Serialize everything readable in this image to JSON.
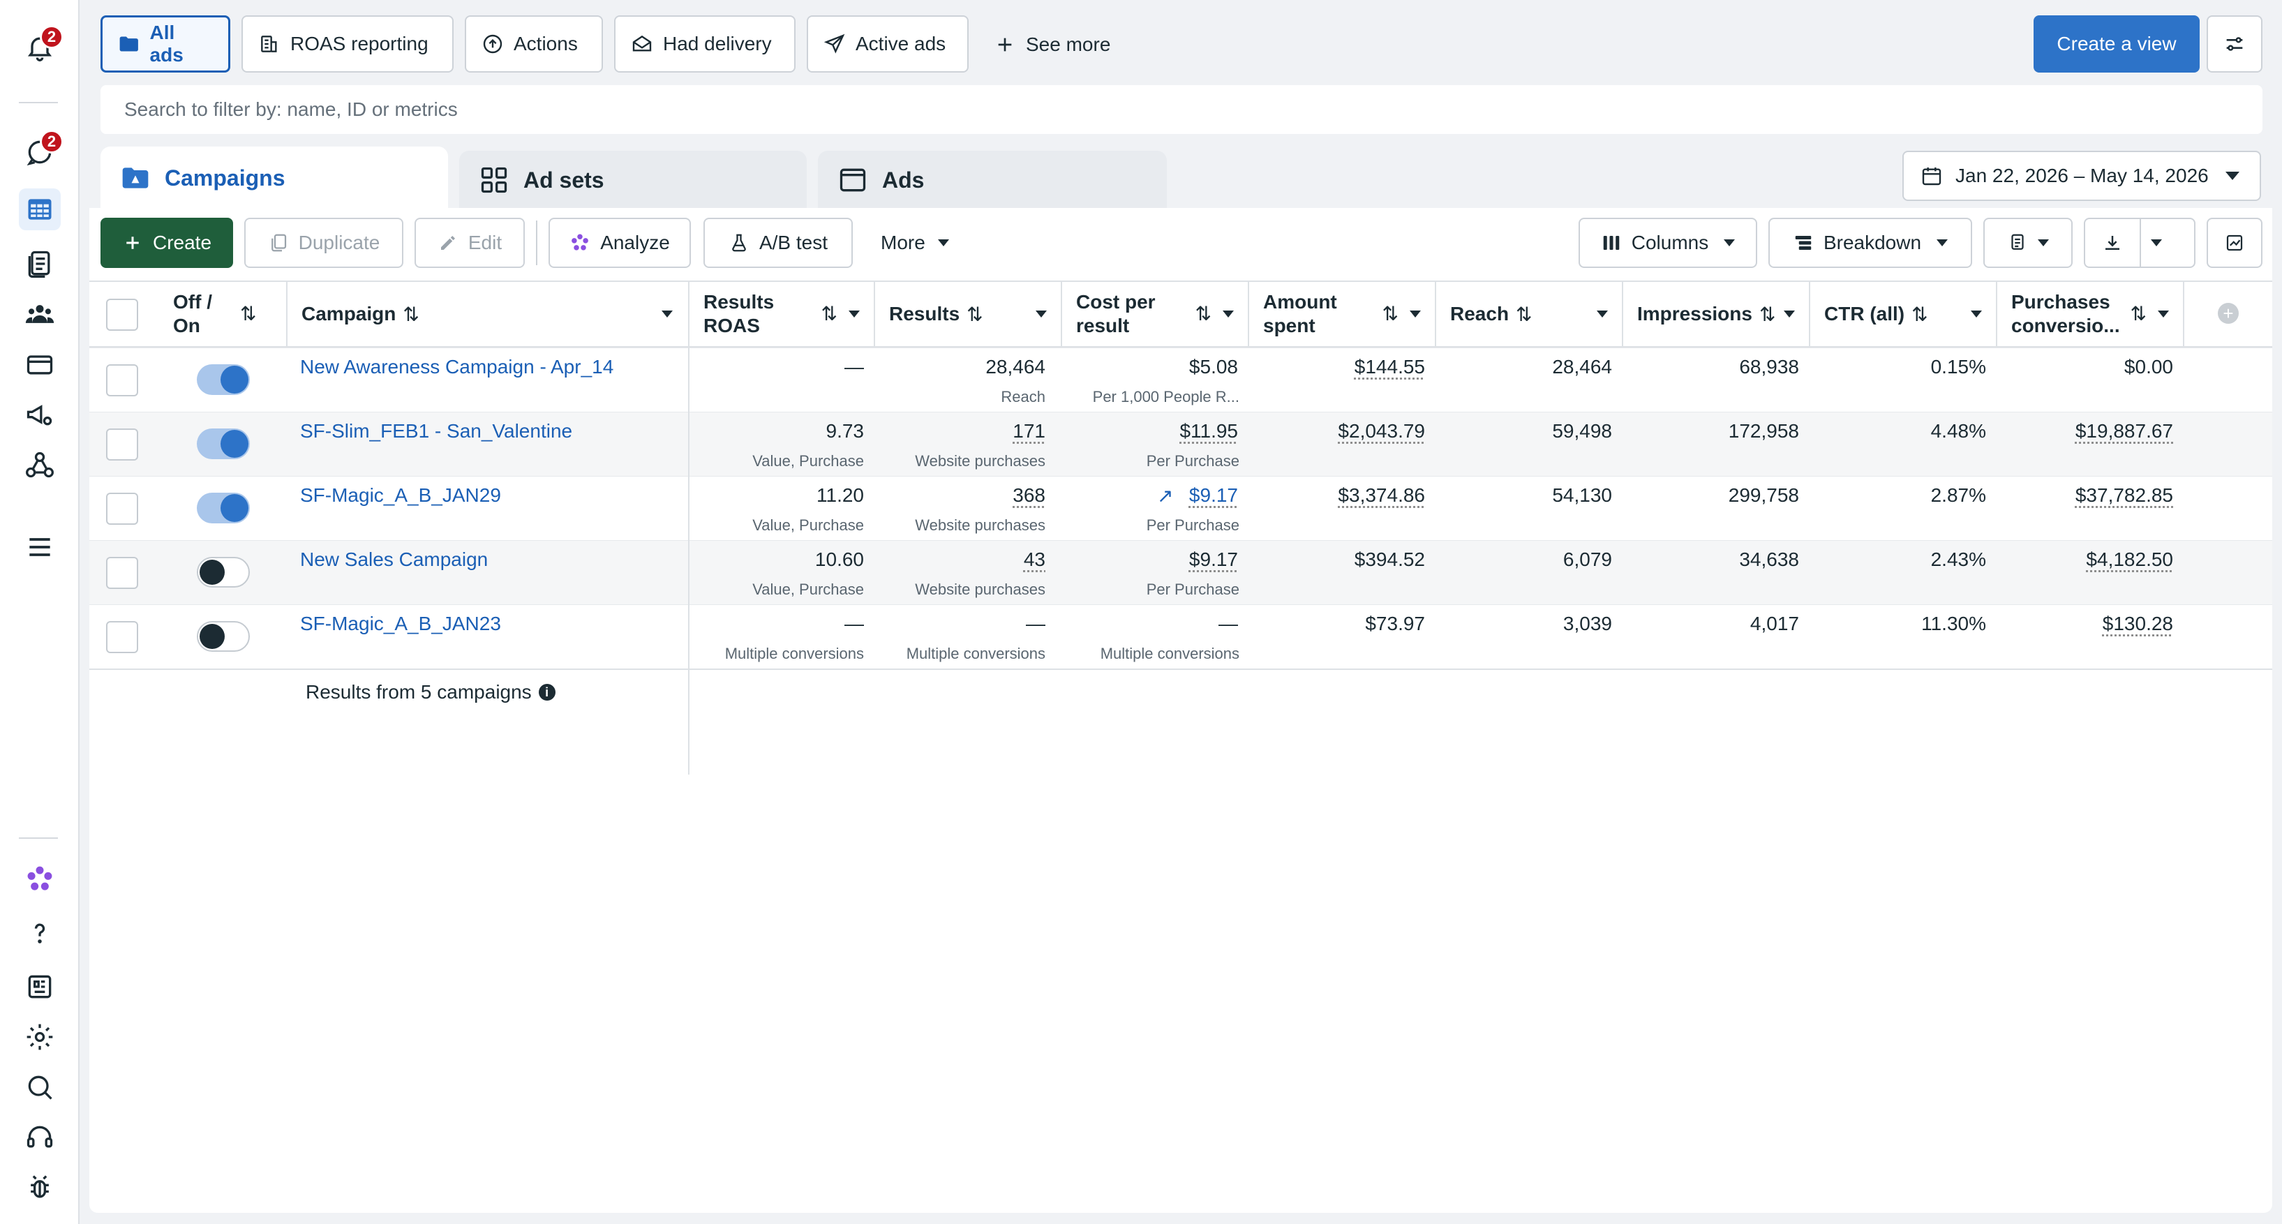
{
  "rail": {
    "notifications_badge": "2",
    "alerts_badge": "2"
  },
  "views": {
    "chips": [
      "All ads",
      "ROAS reporting",
      "Actions",
      "Had delivery",
      "Active ads"
    ],
    "see_more": "See more",
    "create_view": "Create a view"
  },
  "search": {
    "placeholder": "Search to filter by: name, ID or metrics"
  },
  "tabs": {
    "campaigns": "Campaigns",
    "ad_sets": "Ad sets",
    "ads": "Ads"
  },
  "date_range": "Jan 22, 2026 – May 14, 2026",
  "toolbar": {
    "create": "Create",
    "duplicate": "Duplicate",
    "edit": "Edit",
    "analyze": "Analyze",
    "ab_test": "A/B test",
    "more": "More",
    "columns": "Columns",
    "breakdown": "Breakdown"
  },
  "table": {
    "headers": {
      "off_on_1": "Off /",
      "off_on_2": "On",
      "campaign": "Campaign",
      "roas_1": "Results",
      "roas_2": "ROAS",
      "results": "Results",
      "cpr_1": "Cost per",
      "cpr_2": "result",
      "spent_1": "Amount",
      "spent_2": "spent",
      "reach": "Reach",
      "impressions": "Impressions",
      "ctr": "CTR (all)",
      "purch_1": "Purchases",
      "purch_2": "conversio..."
    },
    "rows": [
      {
        "on": true,
        "name": "New Awareness Campaign - Apr_14",
        "roas": "—",
        "roas_sub": "",
        "results": "28,464",
        "results_sub": "Reach",
        "cpr": "$5.08",
        "cpr_sub": "Per 1,000 People R...",
        "spent": "$144.55",
        "reach": "28,464",
        "impressions": "68,938",
        "ctr": "0.15%",
        "purchases": "$0.00"
      },
      {
        "on": true,
        "name": "SF-Slim_FEB1 - San_Valentine",
        "roas": "9.73",
        "roas_sub": "Value, Purchase",
        "results": "171",
        "results_sub": "Website purchases",
        "cpr": "$11.95",
        "cpr_sub": "Per Purchase",
        "spent": "$2,043.79",
        "reach": "59,498",
        "impressions": "172,958",
        "ctr": "4.48%",
        "purchases": "$19,887.67"
      },
      {
        "on": true,
        "name": "SF-Magic_A_B_JAN29",
        "roas": "11.20",
        "roas_sub": "Value, Purchase",
        "results": "368",
        "results_sub": "Website purchases",
        "cpr": "$9.17",
        "cpr_sub": "Per Purchase",
        "spent": "$3,374.86",
        "reach": "54,130",
        "impressions": "299,758",
        "ctr": "2.87%",
        "purchases": "$37,782.85"
      },
      {
        "on": false,
        "name": "New Sales Campaign",
        "roas": "10.60",
        "roas_sub": "Value, Purchase",
        "results": "43",
        "results_sub": "Website purchases",
        "cpr": "$9.17",
        "cpr_sub": "Per Purchase",
        "spent": "$394.52",
        "reach": "6,079",
        "impressions": "34,638",
        "ctr": "2.43%",
        "purchases": "$4,182.50"
      },
      {
        "on": false,
        "name": "SF-Magic_A_B_JAN23",
        "roas": "—",
        "roas_sub": "Multiple conversions",
        "results": "—",
        "results_sub": "Multiple conversions",
        "cpr": "—",
        "cpr_sub": "Multiple conversions",
        "spent": "$73.97",
        "reach": "3,039",
        "impressions": "4,017",
        "ctr": "11.30%",
        "purchases": "$130.28"
      }
    ],
    "footer": "Results from 5 campaigns"
  },
  "colors": {
    "primary": "#1b5fb5",
    "create_green": "#1f5e3b",
    "alert_red": "#c0141d"
  }
}
